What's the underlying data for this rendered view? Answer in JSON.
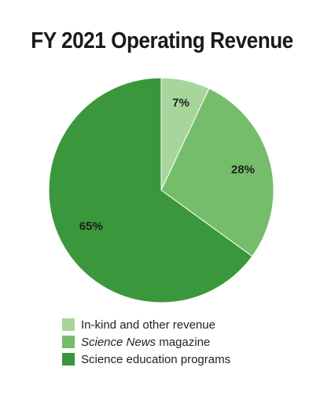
{
  "chart_data": {
    "type": "pie",
    "title": "FY 2021 Operating Revenue",
    "categories": [
      "In-kind and other revenue",
      "Science News magazine",
      "Science education programs"
    ],
    "values": [
      7,
      28,
      65
    ],
    "value_labels": [
      "7%",
      "28%",
      "65%"
    ],
    "colors": [
      "#a7d59c",
      "#76bd6b",
      "#3b973b"
    ],
    "legend_position": "bottom",
    "legend": [
      {
        "italic": "",
        "text": "In-kind and other revenue"
      },
      {
        "italic": "Science News",
        "text": " magazine"
      },
      {
        "italic": "",
        "text": "Science education programs"
      }
    ]
  }
}
